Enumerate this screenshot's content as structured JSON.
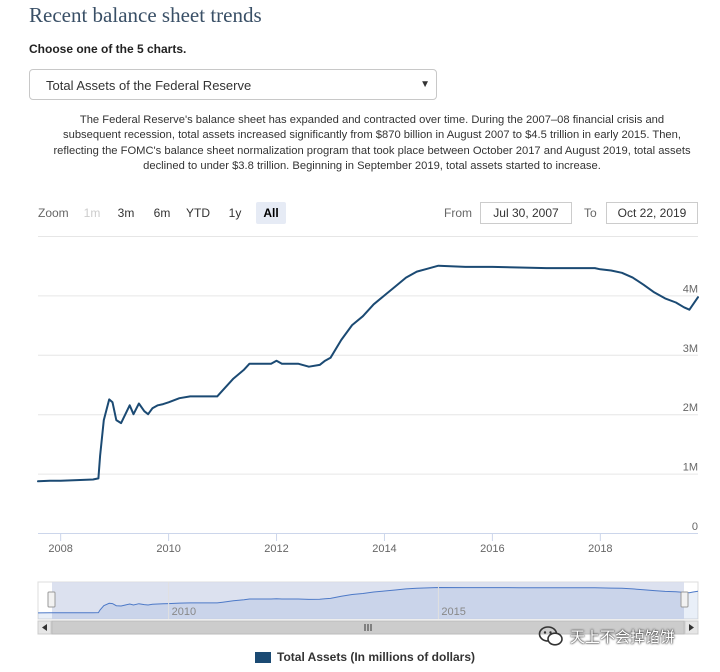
{
  "page": {
    "title": "Recent balance sheet trends",
    "chooser_label": "Choose one of the 5 charts.",
    "select_value": "Total Assets of the Federal Reserve",
    "description": "The Federal Reserve's balance sheet has expanded and contracted over time. During the 2007–08 financial crisis and subsequent recession, total assets increased significantly from $870 billion in August 2007 to $4.5 trillion in early 2015. Then, reflecting the FOMC's balance sheet normalization program that took place between October 2017 and August 2019, total assets declined to under $3.8 trillion. Beginning in September 2019, total assets started to increase."
  },
  "range_selector": {
    "zoom_label": "Zoom",
    "buttons": [
      "1m",
      "3m",
      "6m",
      "YTD",
      "1y",
      "All"
    ],
    "disabled_button": "1m",
    "selected_button": "All",
    "from_label": "From",
    "from_value": "Jul 30, 2007",
    "to_label": "To",
    "to_value": "Oct 22, 2019"
  },
  "watermark": {
    "text": "天上不会掉馅饼"
  },
  "chart_data": {
    "type": "line",
    "title": "",
    "xlabel": "",
    "ylabel": "",
    "x_unit": "year",
    "x_range": [
      2007.58,
      2019.81
    ],
    "x_ticks": [
      "2008",
      "2010",
      "2012",
      "2014",
      "2016",
      "2018"
    ],
    "navigator_x_ticks": [
      "2010",
      "2015"
    ],
    "ylim": [
      0,
      5000000
    ],
    "y_ticks": [
      0,
      1000000,
      2000000,
      3000000,
      4000000
    ],
    "y_tick_labels": [
      "0",
      "1M",
      "2M",
      "3M",
      "4M"
    ],
    "grid": true,
    "legend": "bottom-center",
    "colors": {
      "series": "#1b4a73",
      "navigator_fill": "#d6dcec",
      "navigator_line": "#4d79c7"
    },
    "series": [
      {
        "name": "Total Assets (In millions of dollars)",
        "x": [
          2007.58,
          2007.8,
          2008.0,
          2008.3,
          2008.6,
          2008.7,
          2008.73,
          2008.8,
          2008.9,
          2008.96,
          2009.03,
          2009.12,
          2009.2,
          2009.28,
          2009.35,
          2009.45,
          2009.55,
          2009.62,
          2009.7,
          2009.8,
          2009.9,
          2010.0,
          2010.2,
          2010.4,
          2010.6,
          2010.8,
          2010.9,
          2011.0,
          2011.2,
          2011.4,
          2011.5,
          2011.6,
          2011.7,
          2011.9,
          2012.0,
          2012.1,
          2012.2,
          2012.4,
          2012.6,
          2012.8,
          2012.9,
          2013.0,
          2013.2,
          2013.4,
          2013.6,
          2013.8,
          2014.0,
          2014.2,
          2014.4,
          2014.6,
          2014.8,
          2015.0,
          2015.5,
          2016.0,
          2016.5,
          2017.0,
          2017.5,
          2017.9,
          2018.0,
          2018.2,
          2018.4,
          2018.6,
          2018.8,
          2019.0,
          2019.2,
          2019.4,
          2019.55,
          2019.65,
          2019.72,
          2019.81
        ],
        "y": [
          870000,
          880000,
          880000,
          890000,
          900000,
          920000,
          1300000,
          1900000,
          2250000,
          2200000,
          1900000,
          1850000,
          2000000,
          2150000,
          2000000,
          2180000,
          2050000,
          2000000,
          2100000,
          2150000,
          2170000,
          2200000,
          2270000,
          2300000,
          2300000,
          2300000,
          2300000,
          2400000,
          2600000,
          2750000,
          2850000,
          2850000,
          2850000,
          2850000,
          2900000,
          2850000,
          2850000,
          2850000,
          2800000,
          2830000,
          2900000,
          2950000,
          3250000,
          3500000,
          3650000,
          3850000,
          4000000,
          4150000,
          4300000,
          4400000,
          4450000,
          4500000,
          4480000,
          4480000,
          4470000,
          4460000,
          4460000,
          4460000,
          4440000,
          4420000,
          4380000,
          4300000,
          4180000,
          4050000,
          3950000,
          3880000,
          3800000,
          3760000,
          3850000,
          3970000
        ]
      }
    ]
  }
}
